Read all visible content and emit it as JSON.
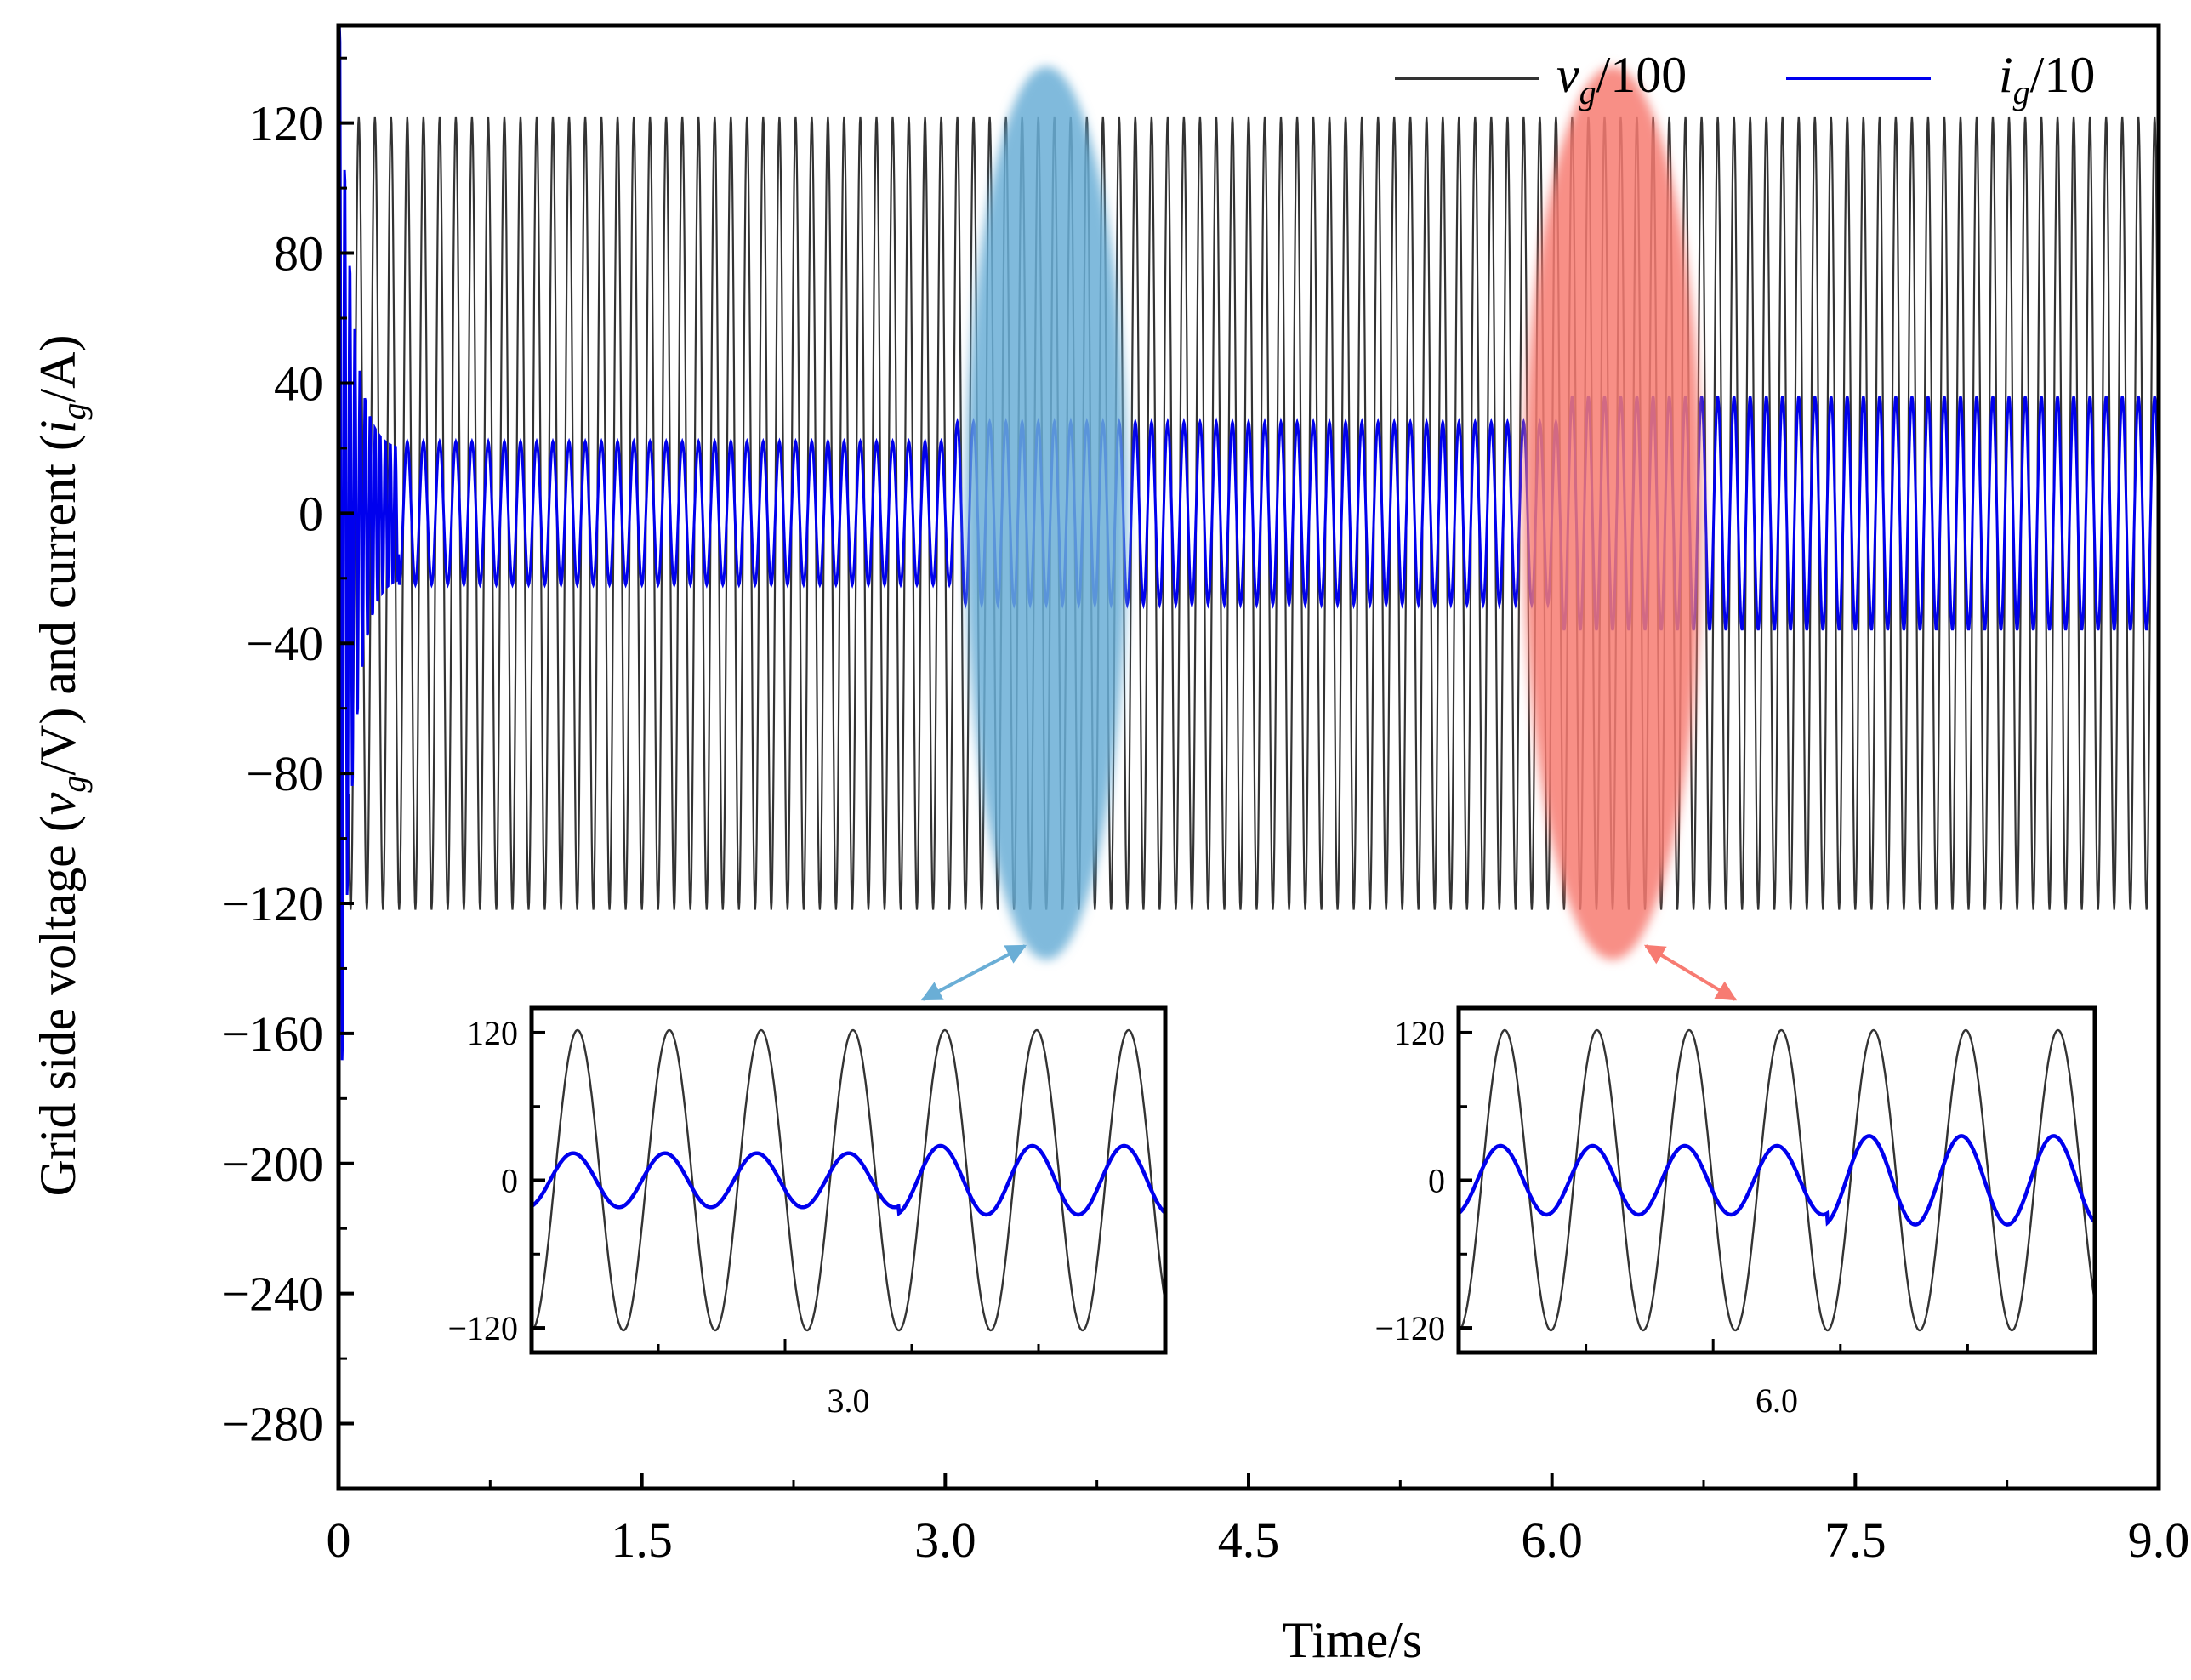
{
  "chart_data": [
    {
      "type": "line",
      "title": "",
      "xlabel": "Time/s",
      "ylabel": "Grid side voltage (v_g/V) and current (i_g/A)",
      "ylabel_parts": {
        "p1": "Grid side voltage (",
        "v": "v",
        "vsub": "g",
        "p2": "/V) and current (",
        "i": "i",
        "isub": "g",
        "p3": "/A)"
      },
      "xlim": [
        0,
        9.0
      ],
      "ylim": [
        -300,
        150
      ],
      "x_ticks": [
        "0",
        "1.5",
        "3.0",
        "4.5",
        "6.0",
        "7.5",
        "9.0"
      ],
      "x_tick_values": [
        0,
        1.5,
        3.0,
        4.5,
        6.0,
        7.5,
        9.0
      ],
      "y_ticks": [
        "120",
        "80",
        "40",
        "0",
        "−40",
        "−80",
        "−120",
        "−160",
        "−200",
        "−240",
        "−280"
      ],
      "y_tick_values": [
        120,
        80,
        40,
        0,
        -40,
        -80,
        -120,
        -160,
        -200,
        -240,
        -280
      ],
      "legend": {
        "placement": "top-right",
        "entries": [
          {
            "var": "v",
            "sub": "g",
            "suffix": "/100",
            "color": "#333333"
          },
          {
            "var": "i",
            "sub": "g",
            "suffix": "/10",
            "color": "#0000ee"
          }
        ]
      },
      "series": [
        {
          "color": "#333333",
          "frequency_hz": 12.5,
          "segments": [
            {
              "t_start": 0.05,
              "t_end": 9.0,
              "amplitude": 122
            }
          ]
        },
        {
          "color": "#0000ee",
          "frequency_hz": 12.5,
          "startup_transient": {
            "t_start": 0.0,
            "t_end": 0.3,
            "peak_max": 150,
            "peak_min": -210
          },
          "segments": [
            {
              "t_start": 0.3,
              "t_end": 3.05,
              "amplitude": 22
            },
            {
              "t_start": 3.05,
              "t_end": 6.05,
              "amplitude": 28
            },
            {
              "t_start": 6.05,
              "t_end": 9.0,
              "amplitude": 36
            }
          ]
        }
      ],
      "highlights": [
        {
          "center_x": 3.5,
          "center_y": 0,
          "color": "#6aaed6"
        },
        {
          "center_x": 6.3,
          "center_y": 0,
          "color": "#f77b72"
        }
      ]
    },
    {
      "type": "line",
      "title": "inset-3.0",
      "x_tick_label": "3.0",
      "y_ticks": [
        "120",
        "0",
        "−120"
      ],
      "y_tick_values": [
        120,
        0,
        -120
      ],
      "ylim": [
        -140,
        140
      ],
      "cycles": 6.9,
      "voltage_amplitude": 122,
      "current_amplitudes": [
        22,
        22,
        22,
        22,
        28,
        28,
        28
      ]
    },
    {
      "type": "line",
      "title": "inset-6.0",
      "x_tick_label": "6.0",
      "y_ticks": [
        "120",
        "0",
        "−120"
      ],
      "y_tick_values": [
        120,
        0,
        -120
      ],
      "ylim": [
        -140,
        140
      ],
      "cycles": 6.9,
      "voltage_amplitude": 122,
      "current_amplitudes": [
        28,
        28,
        28,
        28,
        36,
        36,
        36
      ]
    }
  ]
}
